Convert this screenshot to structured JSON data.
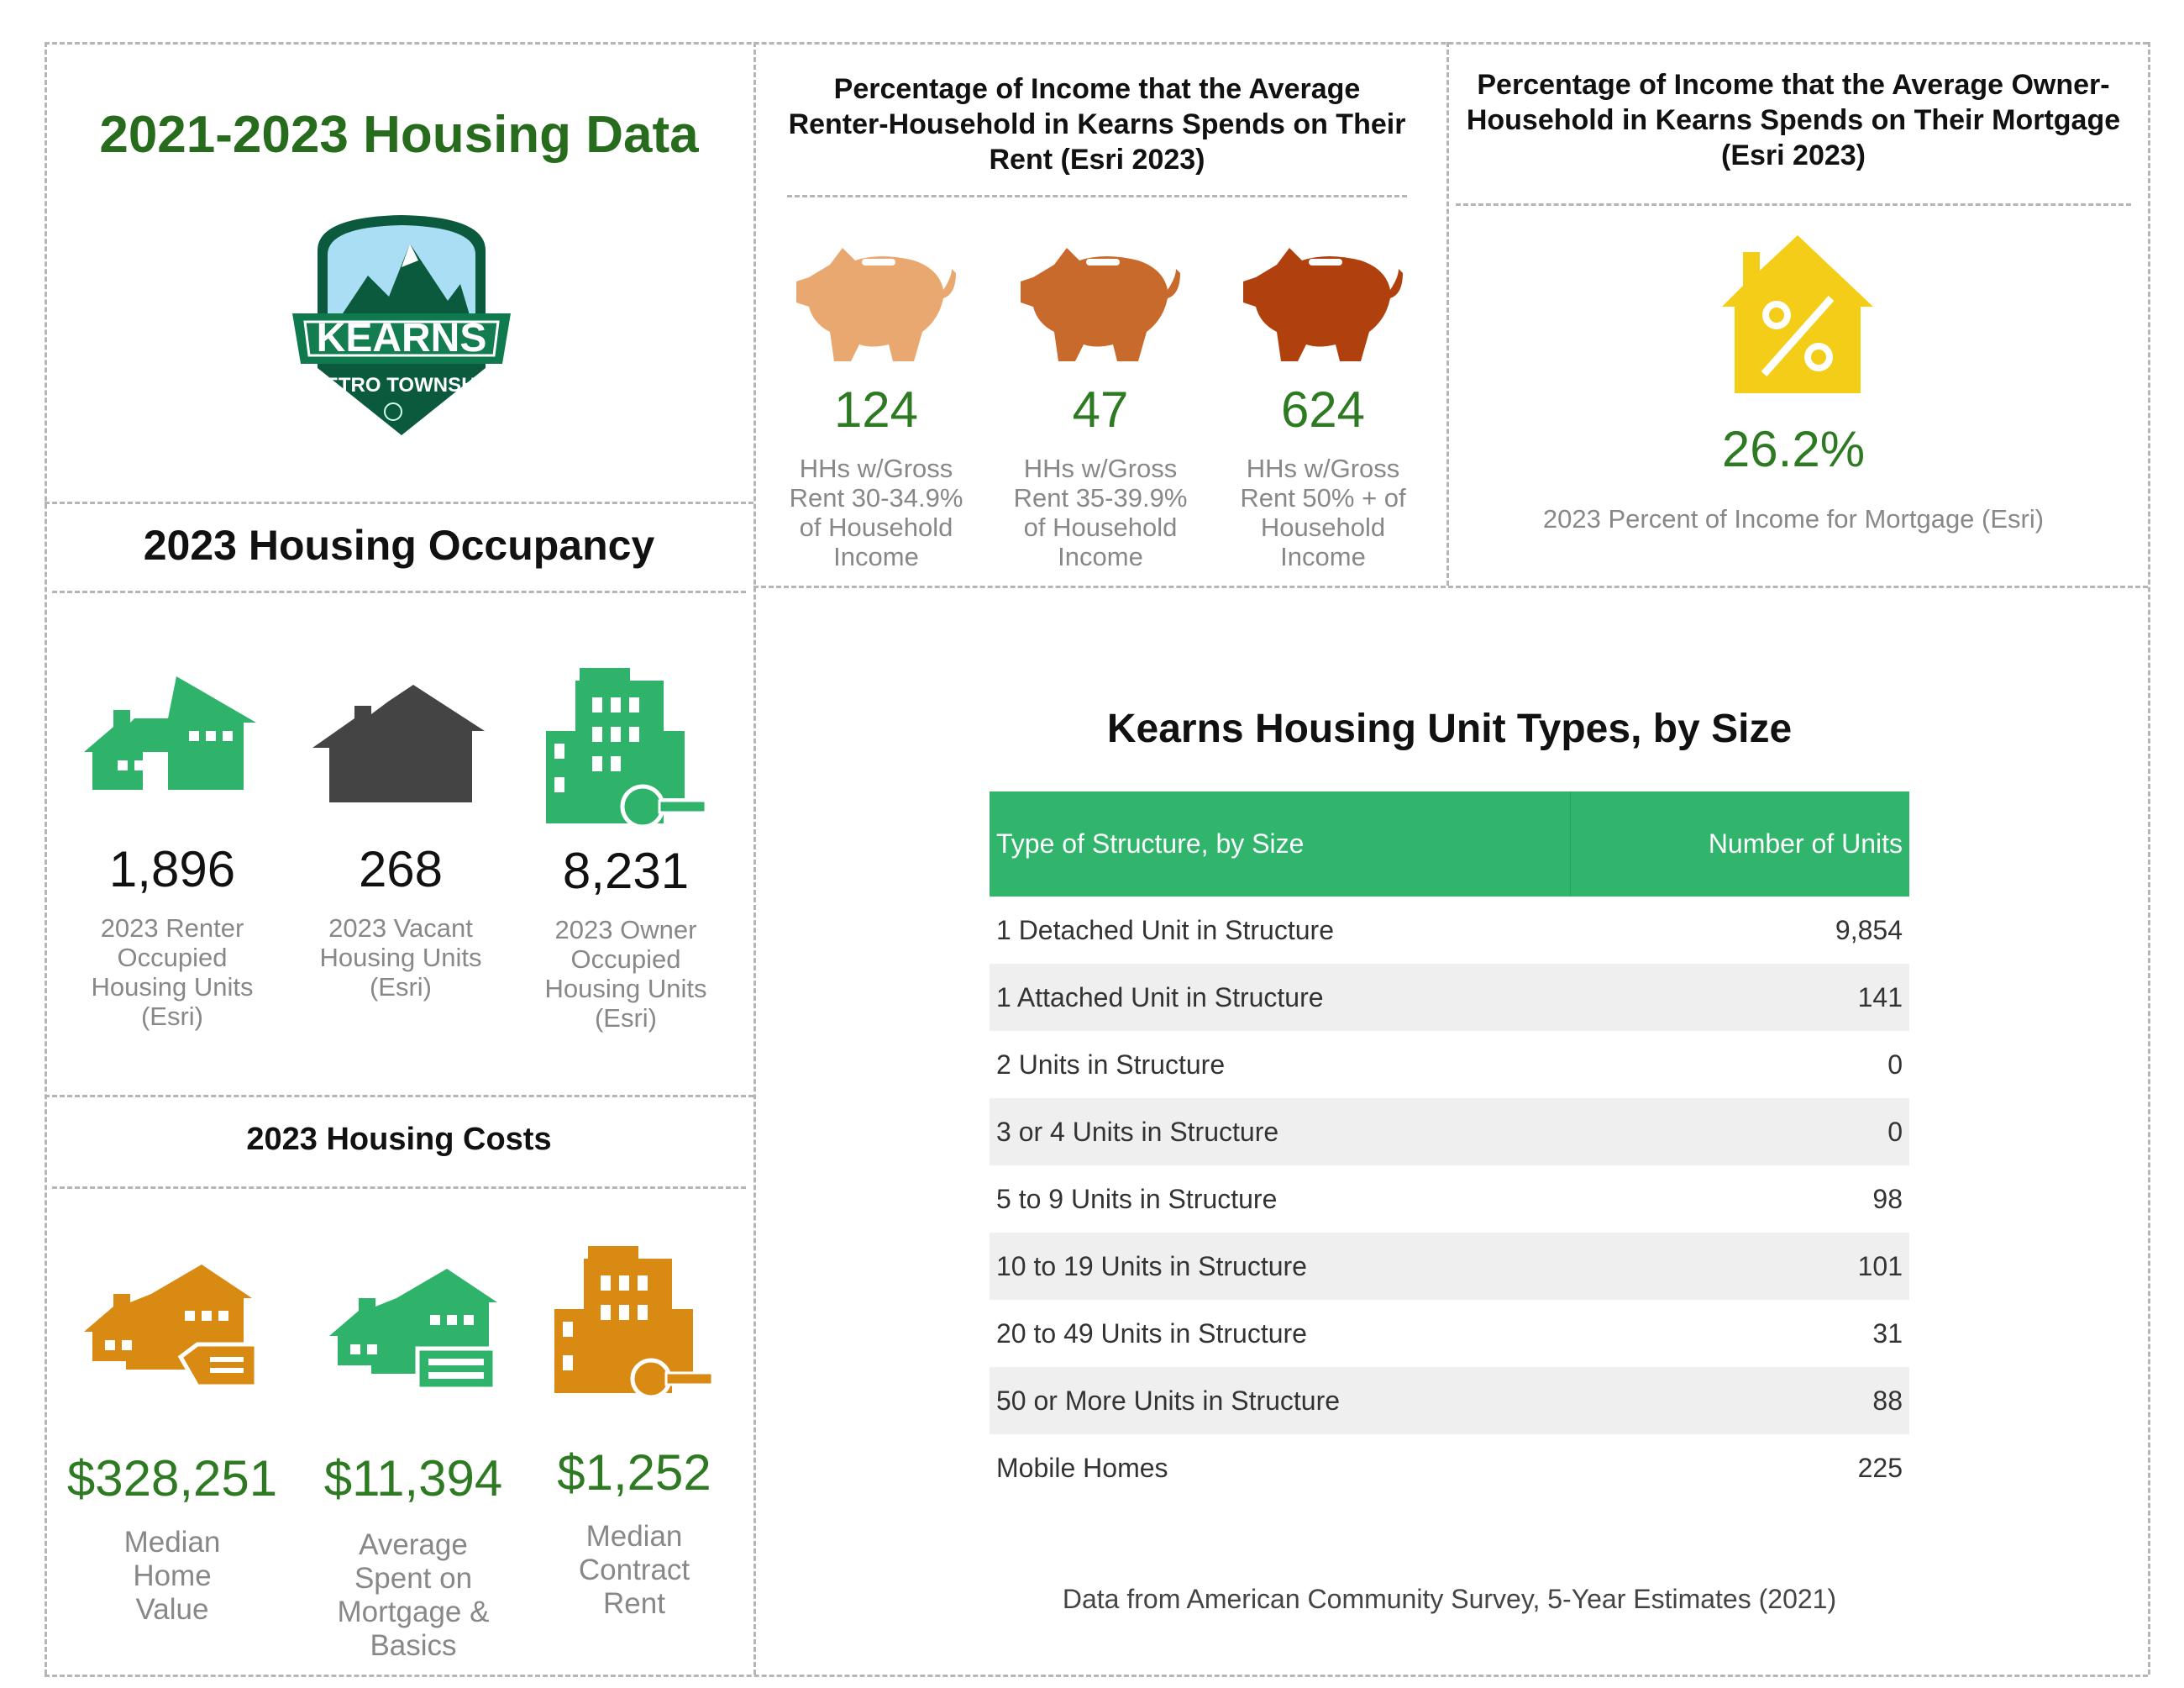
{
  "header": {
    "title": "2021-2023 Housing Data",
    "logo_text": [
      "KEARNS",
      "METRO TOWNSHIP"
    ]
  },
  "occupancy": {
    "heading": "2023 Housing Occupancy",
    "items": [
      {
        "value": "1,896",
        "label": "2023 Renter Occupied Housing Units (Esri)",
        "icon": "house-icon",
        "color": "#2fb36a"
      },
      {
        "value": "268",
        "label": "2023 Vacant Housing Units (Esri)",
        "icon": "house-icon",
        "color": "#444444"
      },
      {
        "value": "8,231",
        "label": "2023 Owner Occupied Housing Units (Esri)",
        "icon": "building-key-icon",
        "color": "#2fb36a"
      }
    ]
  },
  "costs": {
    "heading": "2023 Housing Costs",
    "items": [
      {
        "value": "$328,251",
        "label": "Median Home Value",
        "icon": "house-tag-icon",
        "color": "#d98a12"
      },
      {
        "value": "$11,394",
        "label": "Average Spent on Mortgage & Basics",
        "icon": "house-check-icon",
        "color": "#2fb36a"
      },
      {
        "value": "$1,252",
        "label": "Median Contract Rent",
        "icon": "building-key-icon",
        "color": "#d98a12"
      }
    ]
  },
  "renter": {
    "heading": "Percentage of Income that the Average Renter-Household in Kearns Spends on Their Rent (Esri 2023)",
    "items": [
      {
        "value": "124",
        "label": "HHs w/Gross Rent 30-34.9% of Household Income",
        "icon": "piggy-bank-icon",
        "color": "#e9a870"
      },
      {
        "value": "47",
        "label": "HHs w/Gross Rent 35-39.9% of Household Income",
        "icon": "piggy-bank-icon",
        "color": "#c96a2d"
      },
      {
        "value": "624",
        "label": "HHs w/Gross Rent 50% + of Household Income",
        "icon": "piggy-bank-icon",
        "color": "#b0410f"
      }
    ]
  },
  "owner": {
    "heading": "Percentage of Income that the Average Owner-Household in Kearns Spends on Their Mortgage (Esri 2023)",
    "value": "26.2%",
    "label": "2023 Percent of Income for Mortgage (Esri)",
    "icon": "house-percent-icon",
    "color": "#f3cd17"
  },
  "table": {
    "title": "Kearns Housing Unit Types, by Size",
    "columns": [
      "Type of Structure, by Size",
      "Number of Units"
    ],
    "rows": [
      [
        "1 Detached Unit in Structure",
        "9,854"
      ],
      [
        "1 Attached Unit in Structure",
        "141"
      ],
      [
        "2 Units in Structure",
        "0"
      ],
      [
        "3 or 4 Units in Structure",
        "0"
      ],
      [
        "5 to 9 Units in Structure",
        "98"
      ],
      [
        "10 to 19 Units in Structure",
        "101"
      ],
      [
        "20 to 49 Units in Structure",
        "31"
      ],
      [
        "50 or More Units in Structure",
        "88"
      ],
      [
        "Mobile Homes",
        "225"
      ]
    ],
    "header_color": "#31b56c",
    "source": "Data from American Community Survey, 5-Year Estimates (2021)"
  }
}
